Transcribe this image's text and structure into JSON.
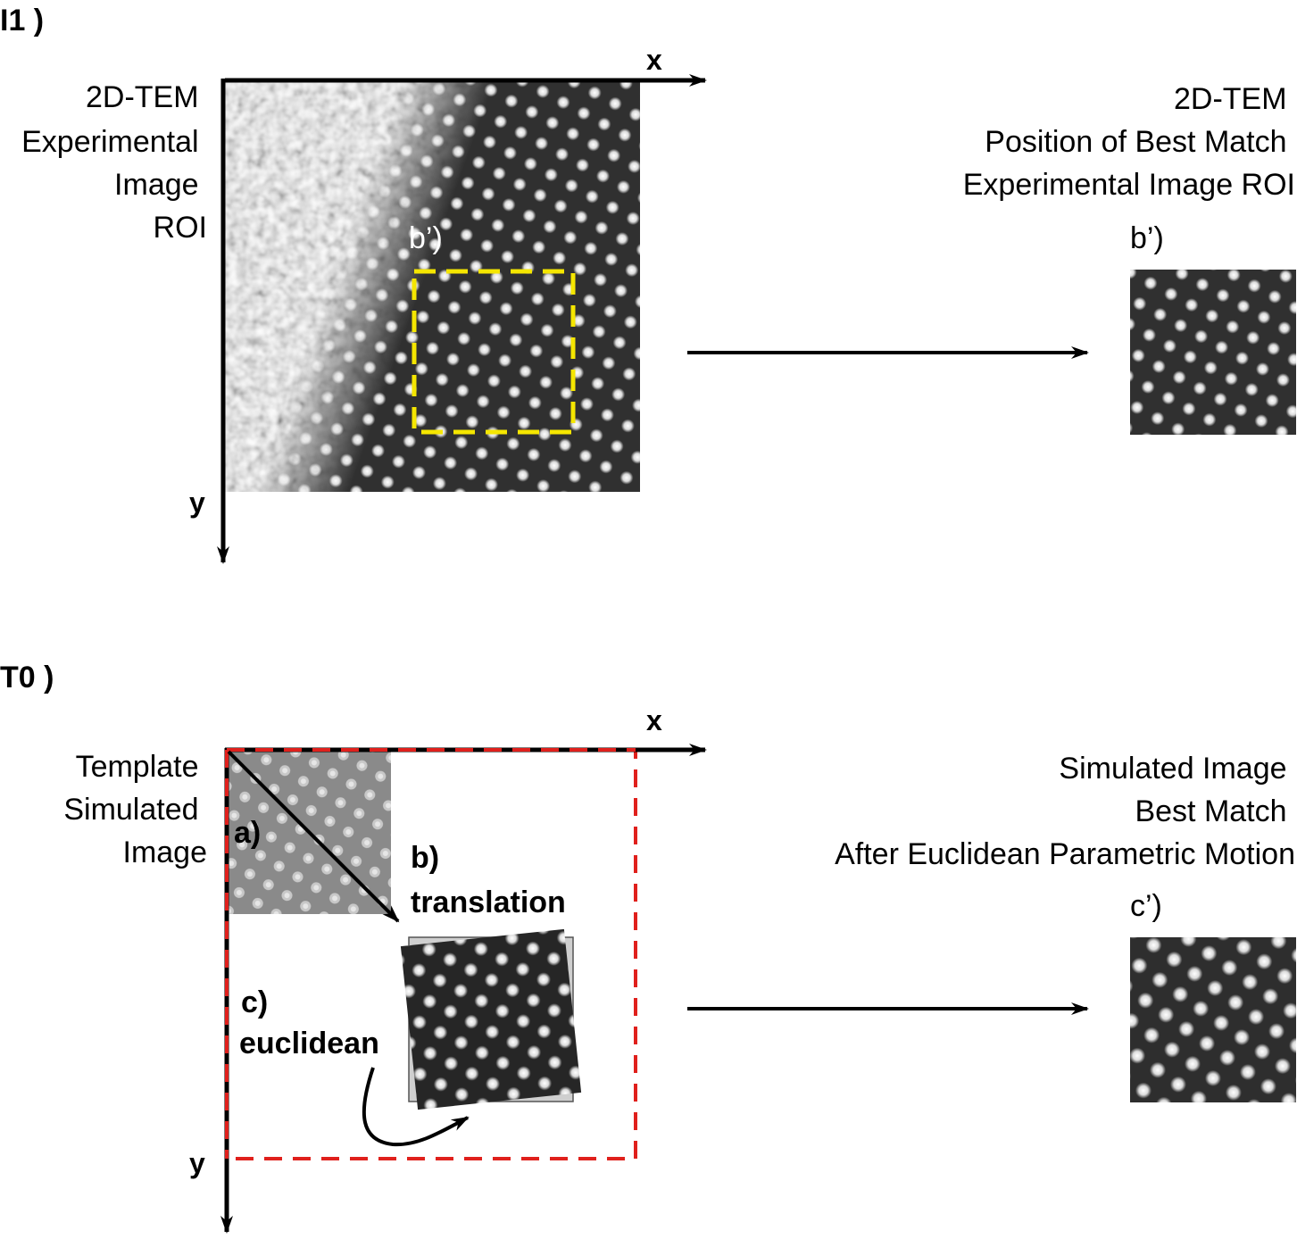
{
  "panel_top": {
    "panel_label": "I1 )",
    "axis_x": "x",
    "axis_y": "y",
    "left_caption": [
      "2D-TEM",
      "Experimental",
      "Image",
      "ROI"
    ],
    "roi_box_label": "b’)",
    "right_caption": [
      "2D-TEM",
      "Position of Best Match",
      "Experimental Image ROI"
    ],
    "result_label": "b’)",
    "roi_box_color": "#f5e600"
  },
  "panel_bottom": {
    "panel_label": "T0 )",
    "axis_x": "x",
    "axis_y": "y",
    "left_caption": [
      "Template",
      "Simulated",
      "Image"
    ],
    "step_a": "a)",
    "step_b": [
      "b)",
      "translation"
    ],
    "step_c": [
      "c)",
      "euclidean"
    ],
    "right_caption": [
      "Simulated Image",
      "Best Match",
      "After Euclidean Parametric Motion"
    ],
    "result_label": "c’)",
    "search_box_color": "#e0201c"
  }
}
